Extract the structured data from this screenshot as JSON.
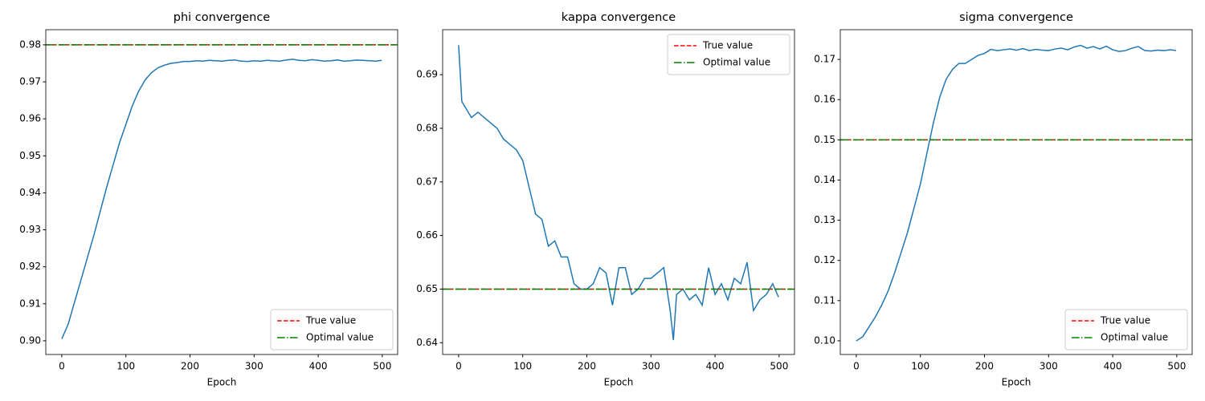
{
  "chart_data": [
    {
      "type": "line",
      "title": "phi convergence",
      "xlabel": "Epoch",
      "x": [
        0,
        10,
        20,
        30,
        40,
        50,
        60,
        70,
        80,
        90,
        100,
        110,
        120,
        130,
        140,
        150,
        160,
        170,
        180,
        190,
        200,
        210,
        220,
        230,
        240,
        250,
        260,
        270,
        280,
        290,
        300,
        310,
        320,
        330,
        340,
        350,
        360,
        370,
        380,
        390,
        400,
        410,
        420,
        430,
        440,
        450,
        460,
        470,
        480,
        490,
        499
      ],
      "series": [
        {
          "color": "#1f77b4",
          "values": [
            0.9005,
            0.9045,
            0.9105,
            0.9165,
            0.9225,
            0.9285,
            0.935,
            0.9415,
            0.9475,
            0.9535,
            0.9585,
            0.9635,
            0.9675,
            0.9705,
            0.9725,
            0.9738,
            0.9745,
            0.975,
            0.9752,
            0.9755,
            0.9755,
            0.9757,
            0.9756,
            0.9758,
            0.9757,
            0.9756,
            0.9758,
            0.9759,
            0.9756,
            0.9755,
            0.9757,
            0.9756,
            0.9758,
            0.9757,
            0.9756,
            0.9759,
            0.9761,
            0.9758,
            0.9757,
            0.976,
            0.9758,
            0.9756,
            0.9757,
            0.9759,
            0.9756,
            0.9757,
            0.9759,
            0.9758,
            0.9757,
            0.9756,
            0.9758
          ]
        }
      ],
      "reference_lines": [
        {
          "name": "True value",
          "value": 0.98,
          "color": "#ff0000",
          "style": "dashed"
        },
        {
          "name": "Optimal value",
          "value": 0.98,
          "color": "#008000",
          "style": "dashdot"
        }
      ],
      "legend": "lower right",
      "xlim": [
        -24.95,
        523.95
      ],
      "xticks": [
        0,
        100,
        200,
        300,
        400,
        500
      ],
      "ylim": [
        0.8963,
        0.9841
      ],
      "yticks": [
        {
          "value": 0.9,
          "label": "0.90"
        },
        0.91,
        0.92,
        0.93,
        0.94,
        0.95,
        0.96,
        0.97,
        0.98
      ]
    },
    {
      "type": "line",
      "title": "kappa convergence",
      "xlabel": "Epoch",
      "x": [
        0,
        5,
        10,
        20,
        30,
        40,
        50,
        60,
        70,
        80,
        90,
        100,
        110,
        120,
        130,
        140,
        150,
        160,
        170,
        180,
        190,
        200,
        210,
        220,
        230,
        240,
        250,
        260,
        270,
        280,
        290,
        300,
        310,
        320,
        330,
        335,
        340,
        350,
        360,
        370,
        380,
        390,
        400,
        410,
        420,
        430,
        440,
        450,
        460,
        470,
        480,
        490,
        499
      ],
      "series": [
        {
          "color": "#1f77b4",
          "values": [
            0.6955,
            0.685,
            0.684,
            0.682,
            0.683,
            0.682,
            0.681,
            0.68,
            0.678,
            0.677,
            0.676,
            0.674,
            0.669,
            0.664,
            0.663,
            0.658,
            0.659,
            0.656,
            0.656,
            0.651,
            0.65,
            0.65,
            0.651,
            0.654,
            0.653,
            0.647,
            0.654,
            0.654,
            0.649,
            0.65,
            0.652,
            0.652,
            0.653,
            0.654,
            0.646,
            0.6405,
            0.649,
            0.65,
            0.648,
            0.649,
            0.647,
            0.654,
            0.649,
            0.651,
            0.648,
            0.652,
            0.651,
            0.655,
            0.646,
            0.648,
            0.649,
            0.651,
            0.6485
          ]
        }
      ],
      "reference_lines": [
        {
          "name": "True value",
          "value": 0.65,
          "color": "#ff0000",
          "style": "dashed"
        },
        {
          "name": "Optimal value",
          "value": 0.65,
          "color": "#008000",
          "style": "dashdot"
        }
      ],
      "legend": "upper right",
      "xlim": [
        -24.95,
        523.95
      ],
      "xticks": [
        0,
        100,
        200,
        300,
        400,
        500
      ],
      "ylim": [
        0.6378,
        0.6984
      ],
      "yticks": [
        0.64,
        0.65,
        0.66,
        0.67,
        0.68,
        0.69
      ]
    },
    {
      "type": "line",
      "title": "sigma convergence",
      "xlabel": "Epoch",
      "x": [
        0,
        10,
        20,
        30,
        40,
        50,
        60,
        70,
        80,
        90,
        100,
        110,
        120,
        130,
        140,
        150,
        160,
        170,
        180,
        190,
        200,
        210,
        220,
        230,
        240,
        250,
        260,
        270,
        280,
        290,
        300,
        310,
        320,
        330,
        340,
        350,
        360,
        370,
        380,
        390,
        400,
        410,
        420,
        430,
        440,
        450,
        460,
        470,
        480,
        490,
        499
      ],
      "series": [
        {
          "color": "#1f77b4",
          "values": [
            0.1,
            0.101,
            0.1035,
            0.106,
            0.109,
            0.1125,
            0.117,
            0.122,
            0.127,
            0.133,
            0.139,
            0.1465,
            0.154,
            0.1605,
            0.165,
            0.1675,
            0.169,
            0.169,
            0.17,
            0.171,
            0.1715,
            0.1725,
            0.1722,
            0.1724,
            0.1726,
            0.1723,
            0.1727,
            0.1722,
            0.1725,
            0.1723,
            0.1722,
            0.1726,
            0.1728,
            0.1724,
            0.1731,
            0.1735,
            0.1728,
            0.1732,
            0.1726,
            0.1733,
            0.1724,
            0.172,
            0.1722,
            0.1728,
            0.1732,
            0.1722,
            0.1721,
            0.1723,
            0.1722,
            0.1724,
            0.1722
          ]
        }
      ],
      "reference_lines": [
        {
          "name": "True value",
          "value": 0.15,
          "color": "#ff0000",
          "style": "dashed"
        },
        {
          "name": "Optimal value",
          "value": 0.15,
          "color": "#008000",
          "style": "dashdot"
        }
      ],
      "legend": "lower right",
      "xlim": [
        -24.95,
        523.95
      ],
      "xticks": [
        0,
        100,
        200,
        300,
        400,
        500
      ],
      "ylim": [
        0.0966,
        0.1774
      ],
      "yticks": [
        {
          "value": 0.1,
          "label": "0.10"
        },
        0.11,
        0.12,
        0.13,
        0.14,
        0.15,
        0.16,
        0.17
      ]
    }
  ]
}
